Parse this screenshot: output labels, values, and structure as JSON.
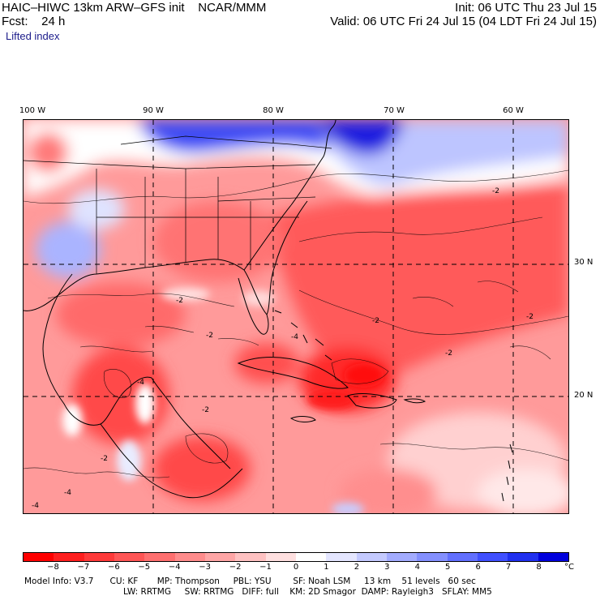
{
  "header": {
    "title_left": "HAIC–HIWC 13km ARW–GFS init    NCAR/MMM",
    "fcst_label": "Fcst:    24 h",
    "field_name": "Lifted index",
    "init_text": "Init: 06 UTC Thu 23 Jul 15",
    "valid_text": "Valid: 06 UTC Fri 24 Jul 15 (04 LDT Fri 24 Jul 15)"
  },
  "map": {
    "longitude_labels": [
      "100 W",
      "90 W",
      "80 W",
      "70 W",
      "60 W"
    ],
    "latitude_labels": [
      "30 N",
      "20 N"
    ],
    "contour_labels": [
      "-2",
      "-2",
      "-4",
      "-2",
      "-2",
      "-4",
      "-2",
      "-4",
      "-2",
      "-4",
      "-2",
      "-2"
    ],
    "colors": {
      "strong_unstable": "#ff2a2a",
      "unstable": "#ff6b6b",
      "mild_unstable": "#ffb3b3",
      "neutral": "#ffffff",
      "stable": "#8f9dff",
      "strong_stable": "#1414e0"
    }
  },
  "colorbar": {
    "tick_labels": [
      "−8",
      "−7",
      "−6",
      "−5",
      "−4",
      "−3",
      "−2",
      "−1",
      "0",
      "1",
      "2",
      "3",
      "4",
      "5",
      "6",
      "7",
      "8"
    ],
    "unit": "°C",
    "colors": [
      "#ff0000",
      "#ff1f1f",
      "#ff3a3a",
      "#ff5656",
      "#ff7070",
      "#ff8c8c",
      "#ffa6a6",
      "#ffc2c2",
      "#ffe0e0",
      "#ffffff",
      "#e4e6ff",
      "#c4caff",
      "#a3acff",
      "#8490ff",
      "#6270ff",
      "#4050ff",
      "#2030f0",
      "#0000dd"
    ]
  },
  "footer": {
    "line1": "Model Info: V3.7      CU: KF       MP: Thompson     PBL: YSU        SF: Noah LSM     13 km    51 levels   60 sec",
    "line2": "LW: RRTMG     SW: RRTMG   DIFF: full    KM: 2D Smagor  DAMP: Rayleigh3   SFLAY: MM5"
  }
}
